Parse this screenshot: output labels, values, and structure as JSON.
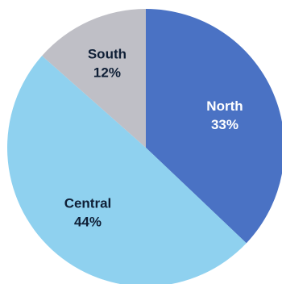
{
  "chart_data": {
    "type": "pie",
    "title": "",
    "start_angle_deg": 0,
    "direction": "clockwise",
    "legend": "none",
    "slices": [
      {
        "label": "North",
        "value": 33,
        "value_label": "33%",
        "color": "#4a72c4",
        "text_color": "#ffffff"
      },
      {
        "label": "Central",
        "value": 44,
        "value_label": "44%",
        "color": "#8fd1ef",
        "text_color": "#0f1f36"
      },
      {
        "label": "South",
        "value": 12,
        "value_label": "12%",
        "color": "#bfbfc6",
        "text_color": "#0f1f36"
      }
    ]
  }
}
